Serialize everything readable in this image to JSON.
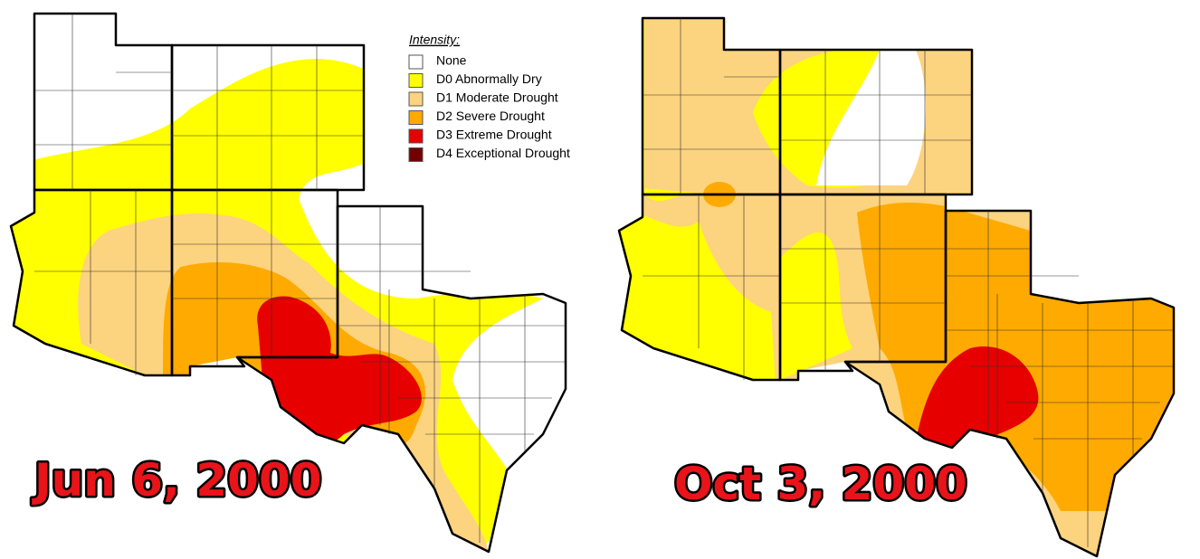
{
  "legend": {
    "title": "Intensity:",
    "items": [
      {
        "label": "None",
        "color": "#ffffff"
      },
      {
        "label": "D0 Abnormally Dry",
        "color": "#ffff00"
      },
      {
        "label": "D1 Moderate Drought",
        "color": "#fcd37f"
      },
      {
        "label": "D2 Severe Drought",
        "color": "#ffaa00"
      },
      {
        "label": "D3 Extreme Drought",
        "color": "#e60000"
      },
      {
        "label": "D4 Exceptional Drought",
        "color": "#730000"
      }
    ]
  },
  "maps": [
    {
      "date": "Jun 6, 2000"
    },
    {
      "date": "Oct 3, 2000"
    }
  ]
}
